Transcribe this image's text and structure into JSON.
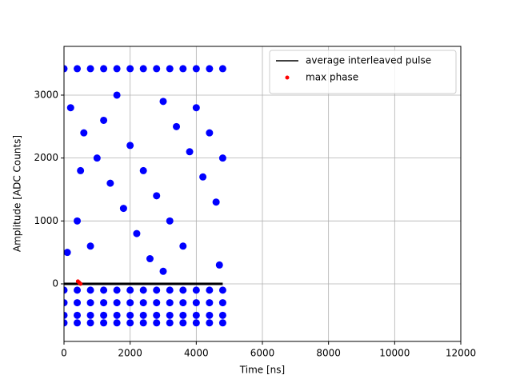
{
  "chart_data": {
    "type": "scatter",
    "xlabel": "Time [ns]",
    "ylabel": "Amplitude [ADC Counts]",
    "xlim": [
      0,
      12000
    ],
    "ylim": [
      -915,
      3775
    ],
    "xticks": [
      0,
      2000,
      4000,
      6000,
      8000,
      10000,
      12000
    ],
    "yticks": [
      0,
      1000,
      2000,
      3000
    ],
    "grid": true,
    "legend": "upper right",
    "series": [
      {
        "style": "scatter",
        "color": "#0000ff",
        "x": [
          0,
          400,
          800,
          1200,
          1600,
          2000,
          2400,
          2800,
          3200,
          3600,
          4000,
          4400,
          4800,
          0,
          400,
          800,
          1200,
          1600,
          2000,
          2400,
          2800,
          3200,
          3600,
          4000,
          4400,
          4800,
          0,
          400,
          800,
          1200,
          1600,
          2000,
          2400,
          2800,
          3200,
          3600,
          4000,
          4400,
          4800,
          0,
          400,
          800,
          1200,
          1600,
          2000,
          2400,
          2800,
          3200,
          3600,
          4000,
          4400,
          4800,
          0,
          400,
          800,
          1200,
          1600,
          2000,
          2400,
          2800,
          3200,
          3600,
          4000,
          4400,
          4800,
          200,
          600,
          1000,
          1400,
          1800,
          2200,
          2600,
          3000,
          3400,
          3800,
          4200,
          4600,
          400,
          800,
          1200,
          1600,
          2000,
          2400,
          2800,
          3200,
          3600,
          4000,
          4400,
          4800,
          100,
          4700,
          500,
          3000
        ],
        "y": [
          -100,
          -100,
          -100,
          -100,
          -100,
          -100,
          -100,
          -100,
          -100,
          -100,
          -100,
          -100,
          -100,
          -300,
          -300,
          -300,
          -300,
          -300,
          -300,
          -300,
          -300,
          -300,
          -300,
          -300,
          -300,
          -300,
          -500,
          -500,
          -500,
          -500,
          -500,
          -500,
          -500,
          -500,
          -500,
          -500,
          -500,
          -500,
          -500,
          -620,
          -620,
          -620,
          -620,
          -620,
          -620,
          -620,
          -620,
          -620,
          -620,
          -620,
          -620,
          -620,
          3420,
          3420,
          3420,
          3420,
          3420,
          3420,
          3420,
          3420,
          3420,
          3420,
          3420,
          3420,
          3420,
          2800,
          2400,
          2000,
          1600,
          1200,
          800,
          400,
          2900,
          2500,
          2100,
          1700,
          1300,
          1000,
          600,
          2600,
          3000,
          2200,
          1800,
          1400,
          1000,
          600,
          2800,
          2400,
          2000,
          500,
          300,
          1800,
          200
        ]
      },
      {
        "name": "average interleaved pulse",
        "style": "line",
        "color": "#000000",
        "x": [
          0,
          1000,
          2000,
          3000,
          4000,
          4800
        ],
        "y": [
          0,
          0,
          0,
          0,
          0,
          0
        ]
      },
      {
        "name": "max phase",
        "style": "scatter",
        "color": "#ff0000",
        "x": [
          420,
          460,
          500
        ],
        "y": [
          40,
          20,
          0
        ]
      }
    ]
  }
}
